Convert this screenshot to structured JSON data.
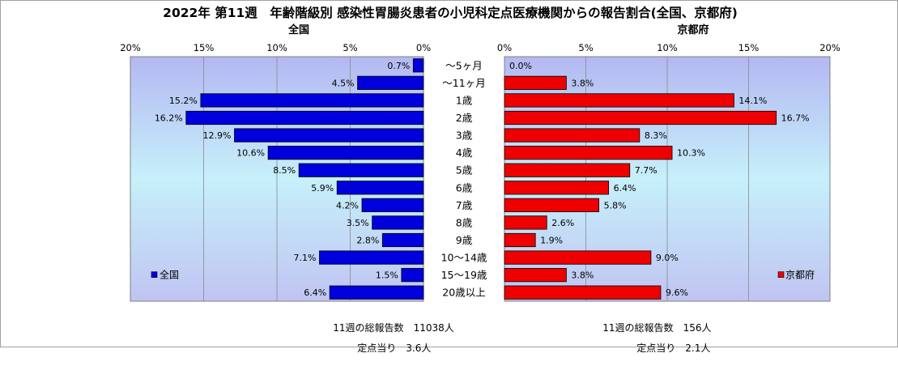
{
  "title": "2022年 第11週　年齢階級別 感染性胃腸炎患者の小児科定点医療機関からの報告割合(全国、京都府)",
  "chart_data": {
    "type": "bar",
    "orientation": "horizontal-butterfly",
    "categories": [
      "～5ヶ月",
      "～11ヶ月",
      "1歳",
      "2歳",
      "3歳",
      "4歳",
      "5歳",
      "6歳",
      "7歳",
      "8歳",
      "9歳",
      "10～14歳",
      "15～19歳",
      "20歳以上"
    ],
    "axis_ticks": [
      "0%",
      "5%",
      "10%",
      "15%",
      "20%"
    ],
    "xlim": [
      0,
      20
    ],
    "grid": true,
    "series": [
      {
        "name": "全国",
        "side": "left",
        "color": "#0000dd",
        "values": [
          0.7,
          4.5,
          15.2,
          16.2,
          12.9,
          10.6,
          8.5,
          5.9,
          4.2,
          3.5,
          2.8,
          7.1,
          1.5,
          6.4
        ],
        "labels": [
          "0.7%",
          "4.5%",
          "15.2%",
          "16.2%",
          "12.9%",
          "10.6%",
          "8.5%",
          "5.9%",
          "4.2%",
          "3.5%",
          "2.8%",
          "7.1%",
          "1.5%",
          "6.4%"
        ],
        "legend_position": "bottom-left"
      },
      {
        "name": "京都府",
        "side": "right",
        "color": "#ee0000",
        "values": [
          0.0,
          3.8,
          14.1,
          16.7,
          8.3,
          10.3,
          7.7,
          6.4,
          5.8,
          2.6,
          1.9,
          9.0,
          3.8,
          9.6
        ],
        "labels": [
          "0.0%",
          "3.8%",
          "14.1%",
          "16.7%",
          "8.3%",
          "10.3%",
          "7.7%",
          "6.4%",
          "5.8%",
          "2.6%",
          "1.9%",
          "9.0%",
          "3.8%",
          "9.6%"
        ],
        "legend_position": "bottom-right"
      }
    ]
  },
  "footer": {
    "national": {
      "total_label": "11週の総報告数",
      "total_value": "11038人",
      "per_site_label": "定点当り",
      "per_site_value": "3.6人"
    },
    "kyoto": {
      "total_label": "11週の総報告数",
      "total_value": "156人",
      "per_site_label": "定点当り",
      "per_site_value": "2.1人"
    }
  }
}
